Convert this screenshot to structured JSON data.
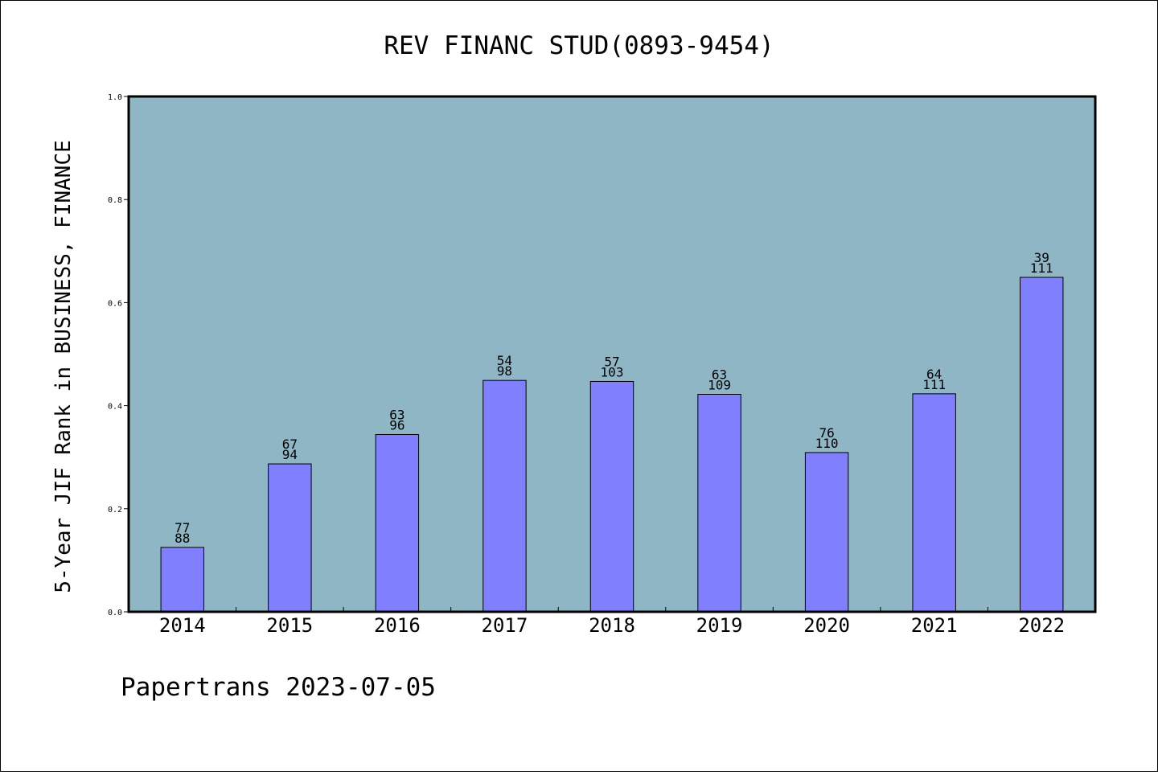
{
  "chart_data": {
    "type": "bar",
    "title": "REV FINANC STUD(0893-9454)",
    "xlabel": "",
    "ylabel": "5-Year JIF Rank in BUSINESS, FINANCE",
    "ylim": [
      0.0,
      1.0
    ],
    "y_ticks": [
      "0.0",
      "0.2",
      "0.4",
      "0.6",
      "0.8",
      "1.0"
    ],
    "grid": false,
    "categories": [
      "2014",
      "2015",
      "2016",
      "2017",
      "2018",
      "2019",
      "2020",
      "2021",
      "2022"
    ],
    "values": [
      0.125,
      0.287,
      0.344,
      0.449,
      0.447,
      0.422,
      0.309,
      0.423,
      0.649
    ],
    "rank": [
      "77",
      "67",
      "63",
      "54",
      "57",
      "63",
      "76",
      "64",
      "39"
    ],
    "total": [
      "88",
      "94",
      "96",
      "98",
      "103",
      "109",
      "110",
      "111",
      "111"
    ],
    "colors": {
      "plot_background": "#8fb6c5",
      "bar_fill": "#8080ff",
      "bar_stroke": "#000000"
    }
  },
  "footer": "Papertrans 2023-07-05"
}
